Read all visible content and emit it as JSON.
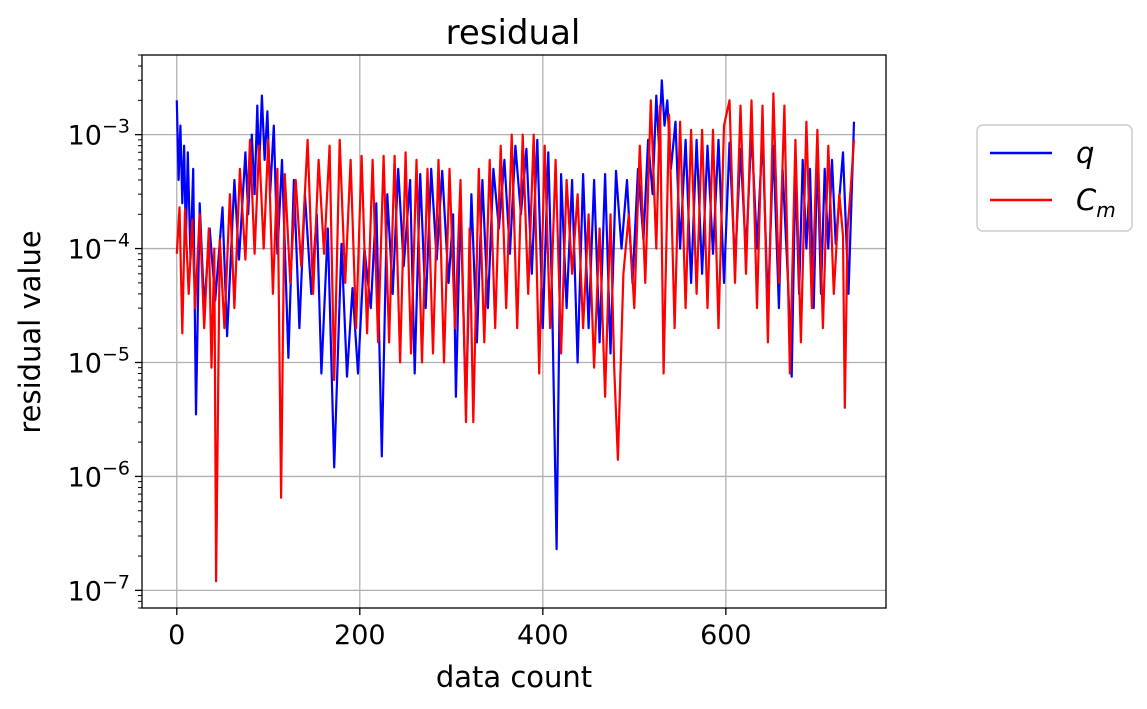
{
  "chart_data": {
    "type": "line",
    "title": "residual",
    "xlabel": "data count",
    "ylabel": "residual value",
    "yscale": "log",
    "xlim": [
      -38,
      775
    ],
    "ylim": [
      7e-08,
      0.005
    ],
    "grid": true,
    "legend_position": "outside-right",
    "x_ticks": [
      {
        "value": 0,
        "label": "0"
      },
      {
        "value": 200,
        "label": "200"
      },
      {
        "value": 400,
        "label": "400"
      },
      {
        "value": 600,
        "label": "600"
      }
    ],
    "y_ticks": [
      {
        "value": 1e-07,
        "base": "10",
        "exp": "−7"
      },
      {
        "value": 1e-06,
        "base": "10",
        "exp": "−6"
      },
      {
        "value": 1e-05,
        "base": "10",
        "exp": "−5"
      },
      {
        "value": 0.0001,
        "base": "10",
        "exp": "−4"
      },
      {
        "value": 0.001,
        "base": "10",
        "exp": "−3"
      }
    ],
    "series": [
      {
        "name": "q",
        "name_sub": "",
        "color": "#0000ff",
        "points": [
          [
            0,
            0.002
          ],
          [
            2,
            0.0004
          ],
          [
            4,
            0.0012
          ],
          [
            6,
            0.00025
          ],
          [
            8,
            0.0008
          ],
          [
            10,
            0.00012
          ],
          [
            12,
            0.0007
          ],
          [
            15,
            8e-05
          ],
          [
            18,
            0.0005
          ],
          [
            21,
            3.5e-06
          ],
          [
            25,
            0.00025
          ],
          [
            30,
            3e-05
          ],
          [
            36,
            0.00015
          ],
          [
            42,
            3.5e-05
          ],
          [
            50,
            0.00023
          ],
          [
            55,
            1.7e-05
          ],
          [
            63,
            0.0004
          ],
          [
            68,
            8e-05
          ],
          [
            75,
            0.0007
          ],
          [
            78,
            0.0002
          ],
          [
            82,
            0.001
          ],
          [
            85,
            0.0003
          ],
          [
            88,
            0.0018
          ],
          [
            90,
            0.0005
          ],
          [
            93,
            0.0022
          ],
          [
            96,
            0.0006
          ],
          [
            99,
            0.0016
          ],
          [
            102,
            0.0003
          ],
          [
            106,
            0.0012
          ],
          [
            110,
            9e-05
          ],
          [
            115,
            0.0006
          ],
          [
            122,
            1.1e-05
          ],
          [
            128,
            0.0004
          ],
          [
            134,
            2e-05
          ],
          [
            140,
            0.0003
          ],
          [
            147,
            4e-05
          ],
          [
            153,
            0.0002
          ],
          [
            158,
            8e-06
          ],
          [
            165,
            0.00015
          ],
          [
            172,
            1.2e-06
          ],
          [
            180,
            0.00011
          ],
          [
            186,
            7.5e-06
          ],
          [
            192,
            4.5e-05
          ],
          [
            198,
            8e-06
          ],
          [
            205,
            0.0001
          ],
          [
            212,
            3e-05
          ],
          [
            218,
            0.00025
          ],
          [
            224,
            1.5e-06
          ],
          [
            230,
            0.0003
          ],
          [
            236,
            4e-05
          ],
          [
            242,
            0.0005
          ],
          [
            248,
            7e-05
          ],
          [
            255,
            0.0004
          ],
          [
            260,
            8e-06
          ],
          [
            266,
            0.00045
          ],
          [
            272,
            3e-05
          ],
          [
            278,
            0.0005
          ],
          [
            284,
            8e-05
          ],
          [
            290,
            0.00048
          ],
          [
            297,
            5e-05
          ],
          [
            302,
            0.0002
          ],
          [
            305,
            5e-06
          ],
          [
            310,
            0.00025
          ],
          [
            316,
            4e-06
          ],
          [
            322,
            0.0003
          ],
          [
            328,
            1.5e-05
          ],
          [
            334,
            0.0004
          ],
          [
            340,
            3e-05
          ],
          [
            346,
            0.0005
          ],
          [
            352,
            0.00015
          ],
          [
            358,
            0.0006
          ],
          [
            364,
            9e-05
          ],
          [
            370,
            0.0008
          ],
          [
            376,
            0.0002
          ],
          [
            382,
            0.00075
          ],
          [
            388,
            6e-05
          ],
          [
            394,
            0.0009
          ],
          [
            400,
            2e-05
          ],
          [
            406,
            0.0007
          ],
          [
            410,
            4e-05
          ],
          [
            415,
            2.3e-07
          ],
          [
            420,
            0.00045
          ],
          [
            426,
            3e-05
          ],
          [
            432,
            0.0004
          ],
          [
            438,
            1e-05
          ],
          [
            444,
            0.00045
          ],
          [
            450,
            2e-05
          ],
          [
            456,
            0.0004
          ],
          [
            462,
            1.5e-05
          ],
          [
            468,
            0.00045
          ],
          [
            474,
            1.2e-05
          ],
          [
            480,
            0.00048
          ],
          [
            486,
            0.0001
          ],
          [
            492,
            0.0004
          ],
          [
            498,
            5e-05
          ],
          [
            504,
            0.0005
          ],
          [
            510,
            0.00012
          ],
          [
            515,
            0.0009
          ],
          [
            520,
            0.0003
          ],
          [
            524,
            0.0022
          ],
          [
            527,
            0.0008
          ],
          [
            530,
            0.003
          ],
          [
            533,
            0.0012
          ],
          [
            536,
            0.002
          ],
          [
            540,
            0.0005
          ],
          [
            545,
            0.0013
          ],
          [
            550,
            0.0001
          ],
          [
            556,
            0.0009
          ],
          [
            562,
            5e-05
          ],
          [
            568,
            0.0009
          ],
          [
            574,
            6e-05
          ],
          [
            580,
            0.0008
          ],
          [
            586,
            9e-05
          ],
          [
            592,
            0.0009
          ],
          [
            598,
            5e-05
          ],
          [
            604,
            0.00085
          ],
          [
            610,
            7e-05
          ],
          [
            616,
            0.00075
          ],
          [
            622,
            9e-05
          ],
          [
            628,
            0.0011
          ],
          [
            634,
            0.0001
          ],
          [
            640,
            0.001
          ],
          [
            646,
            3e-05
          ],
          [
            652,
            0.0008
          ],
          [
            658,
            3e-05
          ],
          [
            662,
            0.0005
          ],
          [
            668,
            5e-05
          ],
          [
            672,
            7.5e-06
          ],
          [
            676,
            0.0005
          ],
          [
            680,
            4e-05
          ],
          [
            684,
            0.0006
          ],
          [
            688,
            0.0001
          ],
          [
            692,
            0.0005
          ],
          [
            696,
            3e-05
          ],
          [
            700,
            0.0007
          ],
          [
            704,
            4e-05
          ],
          [
            708,
            0.0005
          ],
          [
            712,
            0.0001
          ],
          [
            716,
            0.0006
          ],
          [
            720,
            0.00011
          ],
          [
            728,
            0.0007
          ],
          [
            734,
            4e-05
          ],
          [
            740,
            0.0013
          ]
        ]
      },
      {
        "name": "C",
        "name_sub": "m",
        "color": "#ff0000",
        "points": [
          [
            0,
            9e-05
          ],
          [
            3,
            0.00023
          ],
          [
            6,
            1.8e-05
          ],
          [
            9,
            0.00022
          ],
          [
            13,
            4e-05
          ],
          [
            17,
            0.00018
          ],
          [
            20,
            3e-05
          ],
          [
            25,
            0.0002
          ],
          [
            30,
            2e-05
          ],
          [
            35,
            0.00015
          ],
          [
            38,
            9e-06
          ],
          [
            41,
            0.0001
          ],
          [
            43,
            1.2e-07
          ],
          [
            47,
            0.00012
          ],
          [
            52,
            2e-05
          ],
          [
            58,
            0.0003
          ],
          [
            63,
            3e-05
          ],
          [
            69,
            0.0005
          ],
          [
            75,
            8e-05
          ],
          [
            80,
            0.0009
          ],
          [
            85,
            9e-05
          ],
          [
            90,
            0.0008
          ],
          [
            95,
            0.0001
          ],
          [
            100,
            0.0009
          ],
          [
            105,
            4e-05
          ],
          [
            110,
            0.0005
          ],
          [
            114,
            6.5e-07
          ],
          [
            118,
            0.00045
          ],
          [
            124,
            5e-05
          ],
          [
            130,
            0.0004
          ],
          [
            136,
            7e-05
          ],
          [
            143,
            0.0009
          ],
          [
            149,
            4e-05
          ],
          [
            155,
            0.0006
          ],
          [
            161,
            9e-05
          ],
          [
            167,
            0.0008
          ],
          [
            172,
            7e-06
          ],
          [
            178,
            0.0009
          ],
          [
            184,
            5e-05
          ],
          [
            190,
            0.0006
          ],
          [
            196,
            2e-05
          ],
          [
            202,
            0.00065
          ],
          [
            208,
            1.8e-05
          ],
          [
            214,
            0.0006
          ],
          [
            220,
            1.5e-05
          ],
          [
            226,
            0.00065
          ],
          [
            232,
            1.5e-05
          ],
          [
            238,
            0.00065
          ],
          [
            244,
            1e-05
          ],
          [
            250,
            0.0007
          ],
          [
            256,
            1.2e-05
          ],
          [
            262,
            0.0006
          ],
          [
            268,
            1e-05
          ],
          [
            274,
            0.0005
          ],
          [
            280,
            1.2e-05
          ],
          [
            286,
            0.0006
          ],
          [
            292,
            1e-05
          ],
          [
            298,
            0.0005
          ],
          [
            304,
            2e-05
          ],
          [
            310,
            0.0004
          ],
          [
            316,
            3e-06
          ],
          [
            320,
            0.00015
          ],
          [
            324,
            3e-06
          ],
          [
            330,
            0.0005
          ],
          [
            336,
            1.5e-05
          ],
          [
            342,
            0.0006
          ],
          [
            348,
            2e-05
          ],
          [
            354,
            0.0008
          ],
          [
            360,
            3e-05
          ],
          [
            366,
            0.001
          ],
          [
            372,
            2e-05
          ],
          [
            378,
            0.001
          ],
          [
            384,
            4e-05
          ],
          [
            390,
            0.001
          ],
          [
            396,
            8e-06
          ],
          [
            402,
            0.0008
          ],
          [
            408,
            2e-05
          ],
          [
            414,
            0.0006
          ],
          [
            420,
            1.2e-05
          ],
          [
            426,
            0.0004
          ],
          [
            432,
            6e-05
          ],
          [
            438,
            0.0003
          ],
          [
            444,
            2e-05
          ],
          [
            450,
            0.0002
          ],
          [
            456,
            9e-06
          ],
          [
            462,
            0.00015
          ],
          [
            468,
            5e-06
          ],
          [
            474,
            0.0002
          ],
          [
            478,
            9e-06
          ],
          [
            482,
            1.4e-06
          ],
          [
            488,
            6e-05
          ],
          [
            494,
            0.0002
          ],
          [
            500,
            3e-05
          ],
          [
            506,
            0.0008
          ],
          [
            512,
            5e-05
          ],
          [
            518,
            0.002
          ],
          [
            524,
            0.0001
          ],
          [
            528,
            0.0018
          ],
          [
            532,
            8e-06
          ],
          [
            538,
            0.0015
          ],
          [
            544,
            2e-05
          ],
          [
            550,
            0.0013
          ],
          [
            556,
            3e-05
          ],
          [
            562,
            0.0011
          ],
          [
            568,
            4e-05
          ],
          [
            574,
            0.0011
          ],
          [
            580,
            3e-05
          ],
          [
            586,
            0.0011
          ],
          [
            592,
            2e-05
          ],
          [
            598,
            0.0012
          ],
          [
            604,
            0.002
          ],
          [
            610,
            5e-05
          ],
          [
            616,
            0.0018
          ],
          [
            622,
            6e-05
          ],
          [
            628,
            0.002
          ],
          [
            634,
            3e-05
          ],
          [
            640,
            0.0018
          ],
          [
            646,
            1.5e-05
          ],
          [
            652,
            0.0023
          ],
          [
            658,
            5e-05
          ],
          [
            664,
            0.0018
          ],
          [
            670,
            8e-06
          ],
          [
            676,
            0.0009
          ],
          [
            682,
            1.5e-05
          ],
          [
            688,
            0.0013
          ],
          [
            694,
            3e-05
          ],
          [
            700,
            0.0011
          ],
          [
            706,
            2e-05
          ],
          [
            712,
            0.0008
          ],
          [
            718,
            4e-05
          ],
          [
            724,
            0.0003
          ],
          [
            728,
            0.00013
          ],
          [
            730,
            4e-06
          ],
          [
            733,
            0.00015
          ],
          [
            736,
            0.0003
          ],
          [
            740,
            0.0009
          ]
        ]
      }
    ]
  }
}
